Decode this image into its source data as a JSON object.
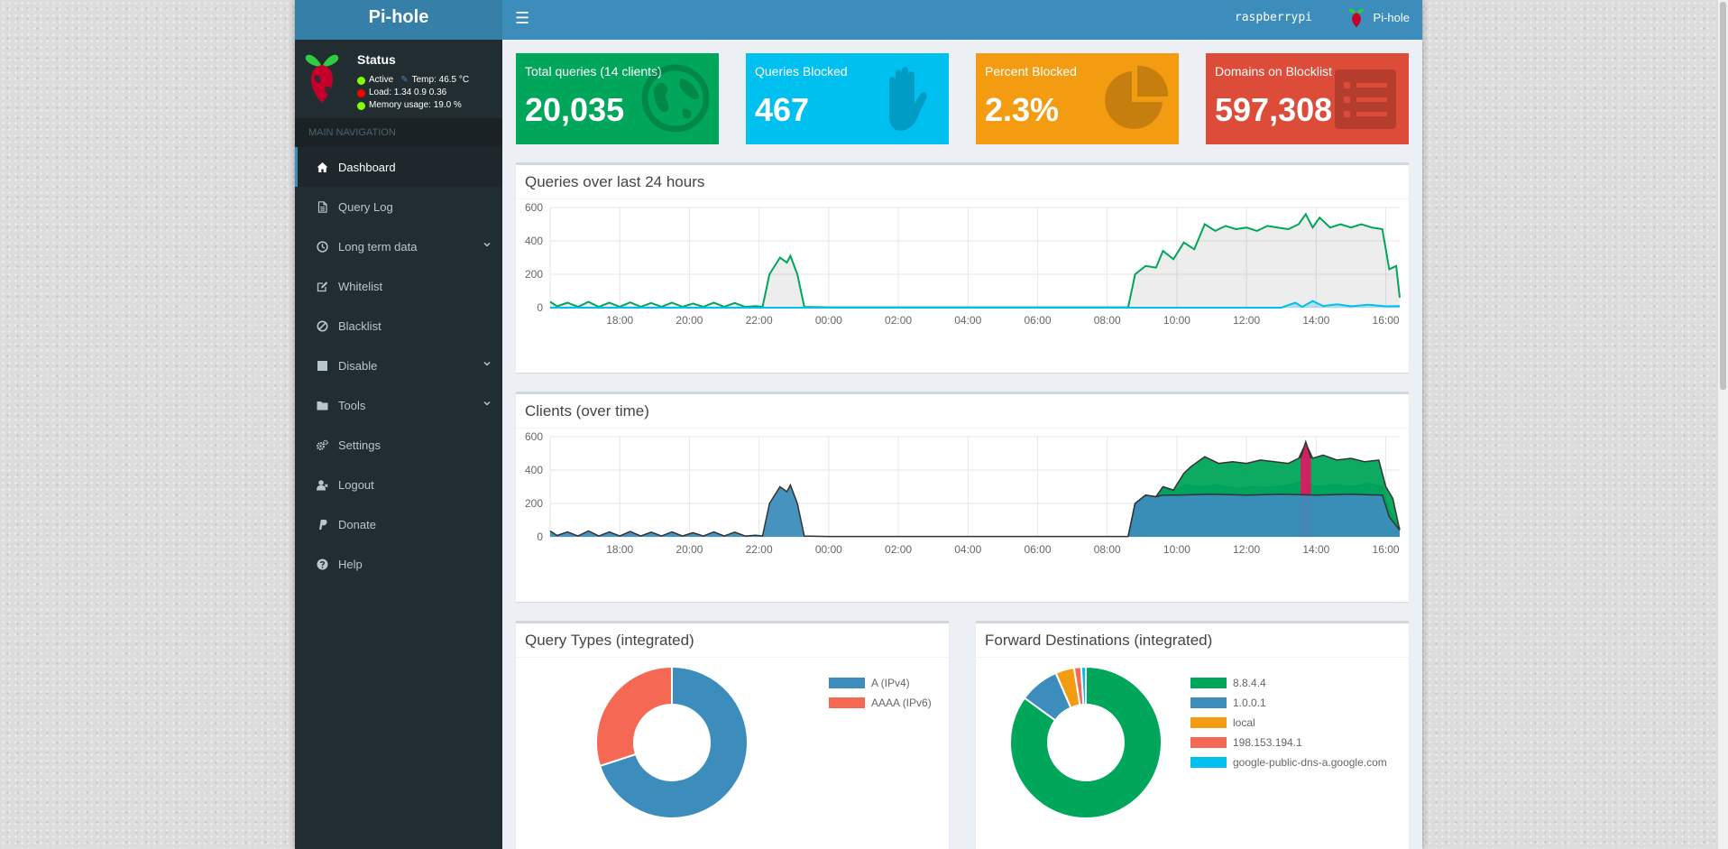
{
  "app": {
    "logo": "Pi-hole"
  },
  "header": {
    "hostname": "raspberrypi",
    "user": "Pi-hole"
  },
  "sidebar": {
    "status_title": "Status",
    "status_active": "Active",
    "status_temp": "Temp: 46.5 °C",
    "status_load": "Load:  1.34  0.9  0.36",
    "status_memory": "Memory usage:  19.0 %",
    "nav_header": "MAIN NAVIGATION",
    "items": [
      {
        "label": "Dashboard",
        "icon": "home-icon"
      },
      {
        "label": "Query Log",
        "icon": "file-icon"
      },
      {
        "label": "Long term data",
        "icon": "clock-icon"
      },
      {
        "label": "Whitelist",
        "icon": "edit-icon"
      },
      {
        "label": "Blacklist",
        "icon": "ban-icon"
      },
      {
        "label": "Disable",
        "icon": "stop-icon"
      },
      {
        "label": "Tools",
        "icon": "folder-icon"
      },
      {
        "label": "Settings",
        "icon": "gears-icon"
      },
      {
        "label": "Logout",
        "icon": "user-times-icon"
      },
      {
        "label": "Donate",
        "icon": "paypal-icon"
      },
      {
        "label": "Help",
        "icon": "question-icon"
      }
    ]
  },
  "stats": [
    {
      "label": "Total queries (14 clients)",
      "value": "20,035",
      "color": "#00a65a",
      "icon": "globe-icon"
    },
    {
      "label": "Queries Blocked",
      "value": "467",
      "color": "#00c0ef",
      "icon": "hand-icon"
    },
    {
      "label": "Percent Blocked",
      "value": "2.3%",
      "color": "#f39c12",
      "icon": "pie-chart-icon"
    },
    {
      "label": "Domains on Blocklist",
      "value": "597,308",
      "color": "#dd4b39",
      "icon": "list-icon"
    }
  ],
  "chart_data": [
    {
      "type": "area",
      "title": "Queries over last 24 hours",
      "x_ticks": [
        "18:00",
        "20:00",
        "22:00",
        "00:00",
        "02:00",
        "04:00",
        "06:00",
        "08:00",
        "10:00",
        "12:00",
        "14:00",
        "16:00"
      ],
      "y_ticks": [
        "0",
        "200",
        "400",
        "600"
      ],
      "ylim": [
        0,
        600
      ],
      "xlim_hours": [
        16.0,
        40.4
      ],
      "grid": true,
      "series": [
        {
          "color": "#00a65a",
          "points": [
            [
              16.0,
              35
            ],
            [
              16.2,
              8
            ],
            [
              16.5,
              30
            ],
            [
              16.8,
              5
            ],
            [
              17.1,
              35
            ],
            [
              17.4,
              5
            ],
            [
              17.7,
              30
            ],
            [
              18.0,
              5
            ],
            [
              18.3,
              32
            ],
            [
              18.6,
              5
            ],
            [
              18.9,
              28
            ],
            [
              19.2,
              5
            ],
            [
              19.5,
              30
            ],
            [
              19.8,
              5
            ],
            [
              20.1,
              25
            ],
            [
              20.4,
              5
            ],
            [
              20.7,
              30
            ],
            [
              21.0,
              5
            ],
            [
              21.3,
              28
            ],
            [
              21.6,
              5
            ],
            [
              21.9,
              10
            ],
            [
              22.1,
              5
            ],
            [
              22.3,
              200
            ],
            [
              22.6,
              300
            ],
            [
              22.8,
              270
            ],
            [
              22.9,
              310
            ],
            [
              23.1,
              200
            ],
            [
              23.3,
              5
            ],
            [
              24.0,
              2
            ],
            [
              32.0,
              2
            ],
            [
              32.6,
              2
            ],
            [
              32.8,
              200
            ],
            [
              33.1,
              250
            ],
            [
              33.4,
              240
            ],
            [
              33.6,
              340
            ],
            [
              33.9,
              290
            ],
            [
              34.2,
              390
            ],
            [
              34.5,
              350
            ],
            [
              34.8,
              500
            ],
            [
              35.1,
              460
            ],
            [
              35.4,
              490
            ],
            [
              35.7,
              470
            ],
            [
              36.0,
              480
            ],
            [
              36.3,
              460
            ],
            [
              36.6,
              490
            ],
            [
              36.9,
              480
            ],
            [
              37.2,
              470
            ],
            [
              37.5,
              500
            ],
            [
              37.7,
              560
            ],
            [
              37.9,
              480
            ],
            [
              38.1,
              540
            ],
            [
              38.4,
              480
            ],
            [
              38.7,
              500
            ],
            [
              39.0,
              480
            ],
            [
              39.3,
              500
            ],
            [
              39.6,
              480
            ],
            [
              39.9,
              470
            ],
            [
              40.1,
              230
            ],
            [
              40.3,
              250
            ],
            [
              40.4,
              60
            ]
          ]
        },
        {
          "color": "#00c0ef",
          "points": [
            [
              16.0,
              0
            ],
            [
              37.0,
              0
            ],
            [
              37.4,
              30
            ],
            [
              37.6,
              5
            ],
            [
              37.9,
              40
            ],
            [
              38.2,
              10
            ],
            [
              38.6,
              20
            ],
            [
              39.0,
              8
            ],
            [
              39.5,
              18
            ],
            [
              40.0,
              8
            ],
            [
              40.4,
              10
            ]
          ]
        }
      ]
    },
    {
      "type": "area",
      "title": "Clients (over time)",
      "x_ticks": [
        "18:00",
        "20:00",
        "22:00",
        "00:00",
        "02:00",
        "04:00",
        "06:00",
        "08:00",
        "10:00",
        "12:00",
        "14:00",
        "16:00"
      ],
      "y_ticks": [
        "0",
        "200",
        "400",
        "600"
      ],
      "ylim": [
        0,
        600
      ],
      "xlim_hours": [
        16.0,
        40.4
      ],
      "grid": true,
      "series": [
        {
          "color": "#3c8dbc",
          "points": [
            [
              16.0,
              35
            ],
            [
              16.2,
              8
            ],
            [
              16.5,
              30
            ],
            [
              16.8,
              5
            ],
            [
              17.1,
              35
            ],
            [
              17.4,
              5
            ],
            [
              17.7,
              30
            ],
            [
              18.0,
              5
            ],
            [
              18.3,
              32
            ],
            [
              18.6,
              5
            ],
            [
              18.9,
              28
            ],
            [
              19.2,
              5
            ],
            [
              19.5,
              30
            ],
            [
              19.8,
              5
            ],
            [
              20.1,
              25
            ],
            [
              20.4,
              5
            ],
            [
              20.7,
              30
            ],
            [
              21.0,
              5
            ],
            [
              21.3,
              28
            ],
            [
              21.6,
              5
            ],
            [
              21.9,
              10
            ],
            [
              22.1,
              5
            ],
            [
              22.3,
              200
            ],
            [
              22.6,
              300
            ],
            [
              22.8,
              270
            ],
            [
              22.9,
              310
            ],
            [
              23.1,
              200
            ],
            [
              23.3,
              5
            ],
            [
              24.0,
              2
            ],
            [
              32.0,
              2
            ],
            [
              32.6,
              2
            ],
            [
              32.8,
              200
            ],
            [
              33.1,
              250
            ],
            [
              33.4,
              240
            ],
            [
              33.6,
              250
            ],
            [
              34.0,
              250
            ],
            [
              35.0,
              255
            ],
            [
              36.0,
              250
            ],
            [
              37.0,
              255
            ],
            [
              38.0,
              250
            ],
            [
              39.0,
              255
            ],
            [
              39.9,
              250
            ],
            [
              40.1,
              120
            ],
            [
              40.4,
              40
            ]
          ]
        },
        {
          "color": "#0073b7",
          "points": [
            [
              32.6,
              2
            ],
            [
              32.8,
              200
            ],
            [
              33.1,
              250
            ],
            [
              33.4,
              240
            ],
            [
              33.6,
              300
            ],
            [
              33.9,
              280
            ],
            [
              34.3,
              310
            ],
            [
              34.7,
              300
            ],
            [
              35.2,
              310
            ],
            [
              35.7,
              290
            ],
            [
              36.2,
              300
            ],
            [
              36.7,
              295
            ],
            [
              37.2,
              310
            ],
            [
              37.6,
              330
            ],
            [
              38.0,
              300
            ],
            [
              38.5,
              310
            ],
            [
              39.0,
              300
            ],
            [
              39.5,
              320
            ],
            [
              39.9,
              300
            ],
            [
              40.1,
              160
            ],
            [
              40.4,
              50
            ]
          ]
        },
        {
          "color": "#00a65a",
          "points": [
            [
              32.6,
              2
            ],
            [
              32.8,
              200
            ],
            [
              33.1,
              250
            ],
            [
              33.4,
              240
            ],
            [
              33.6,
              300
            ],
            [
              33.9,
              280
            ],
            [
              34.2,
              380
            ],
            [
              34.4,
              420
            ],
            [
              34.8,
              480
            ],
            [
              35.2,
              440
            ],
            [
              35.6,
              450
            ],
            [
              36.0,
              440
            ],
            [
              36.4,
              460
            ],
            [
              36.8,
              450
            ],
            [
              37.2,
              440
            ],
            [
              37.5,
              470
            ],
            [
              37.7,
              560
            ],
            [
              37.9,
              470
            ],
            [
              38.2,
              490
            ],
            [
              38.6,
              460
            ],
            [
              39.0,
              470
            ],
            [
              39.4,
              450
            ],
            [
              39.8,
              460
            ],
            [
              40.0,
              300
            ],
            [
              40.2,
              230
            ],
            [
              40.4,
              40
            ]
          ]
        },
        {
          "color": "#d81b60",
          "points": [
            [
              37.55,
              470
            ],
            [
              37.7,
              570
            ],
            [
              37.85,
              470
            ]
          ]
        }
      ]
    },
    {
      "type": "pie",
      "title": "Query Types (integrated)",
      "labels": [
        "A (IPv4)",
        "AAAA (IPv6)"
      ],
      "values": [
        70,
        30
      ],
      "colors": [
        "#3c8dbc",
        "#f56954"
      ]
    },
    {
      "type": "pie",
      "title": "Forward Destinations (integrated)",
      "labels": [
        "8.8.4.4",
        "1.0.0.1",
        "local",
        "198.153.194.1",
        "google-public-dns-a.google.com"
      ],
      "values": [
        85,
        8.5,
        4,
        1.5,
        1
      ],
      "colors": [
        "#00a65a",
        "#3c8dbc",
        "#f39c12",
        "#f56954",
        "#00c0ef"
      ]
    }
  ]
}
